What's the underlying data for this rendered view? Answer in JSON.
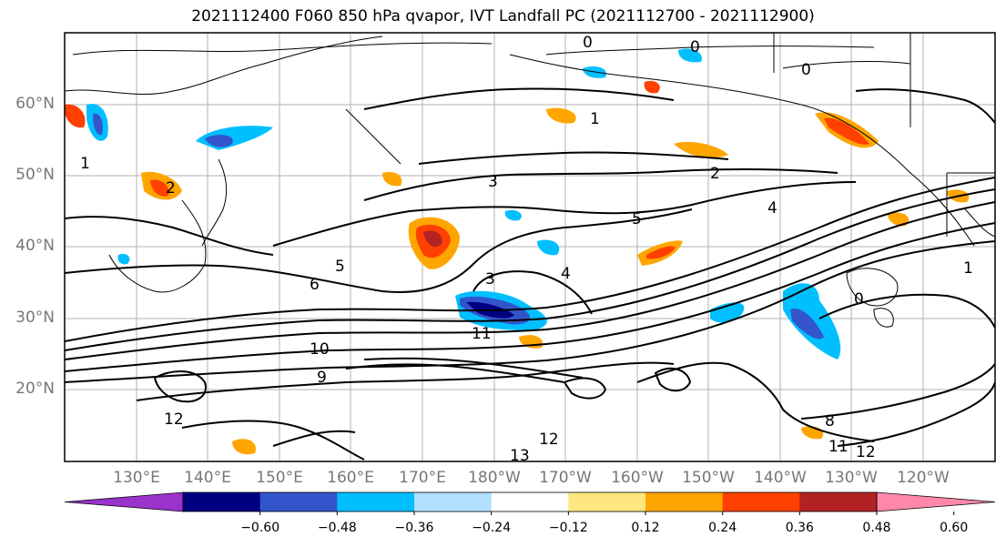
{
  "title": "2021112400 F060 850 hPa qvapor, IVT Landfall PC (2021112700 - 2021112900)",
  "lat_labels": [
    "60°N",
    "50°N",
    "40°N",
    "30°N",
    "20°N"
  ],
  "lon_labels": [
    "130°E",
    "140°E",
    "150°E",
    "160°E",
    "170°E",
    "180°W",
    "170°W",
    "160°W",
    "150°W",
    "140°W",
    "130°W",
    "120°W"
  ],
  "colorbar": {
    "ticks": [
      "−0.60",
      "−0.48",
      "−0.36",
      "−0.24",
      "−0.12",
      "0.12",
      "0.24",
      "0.36",
      "0.48",
      "0.60"
    ],
    "colors": [
      "#9933cc",
      "#000080",
      "#3355cc",
      "#00bfff",
      "#b0e0ff",
      "#ffffff",
      "#ffe680",
      "#ffa500",
      "#ff4000",
      "#b22222",
      "#ff88aa"
    ]
  },
  "contour_labels": [
    "0",
    "0",
    "0",
    "1",
    "1",
    "2",
    "2",
    "3",
    "3",
    "4",
    "4",
    "5",
    "5",
    "6",
    "8",
    "9",
    "10",
    "11",
    "11",
    "12",
    "12",
    "12",
    "13",
    "0",
    "1"
  ]
}
